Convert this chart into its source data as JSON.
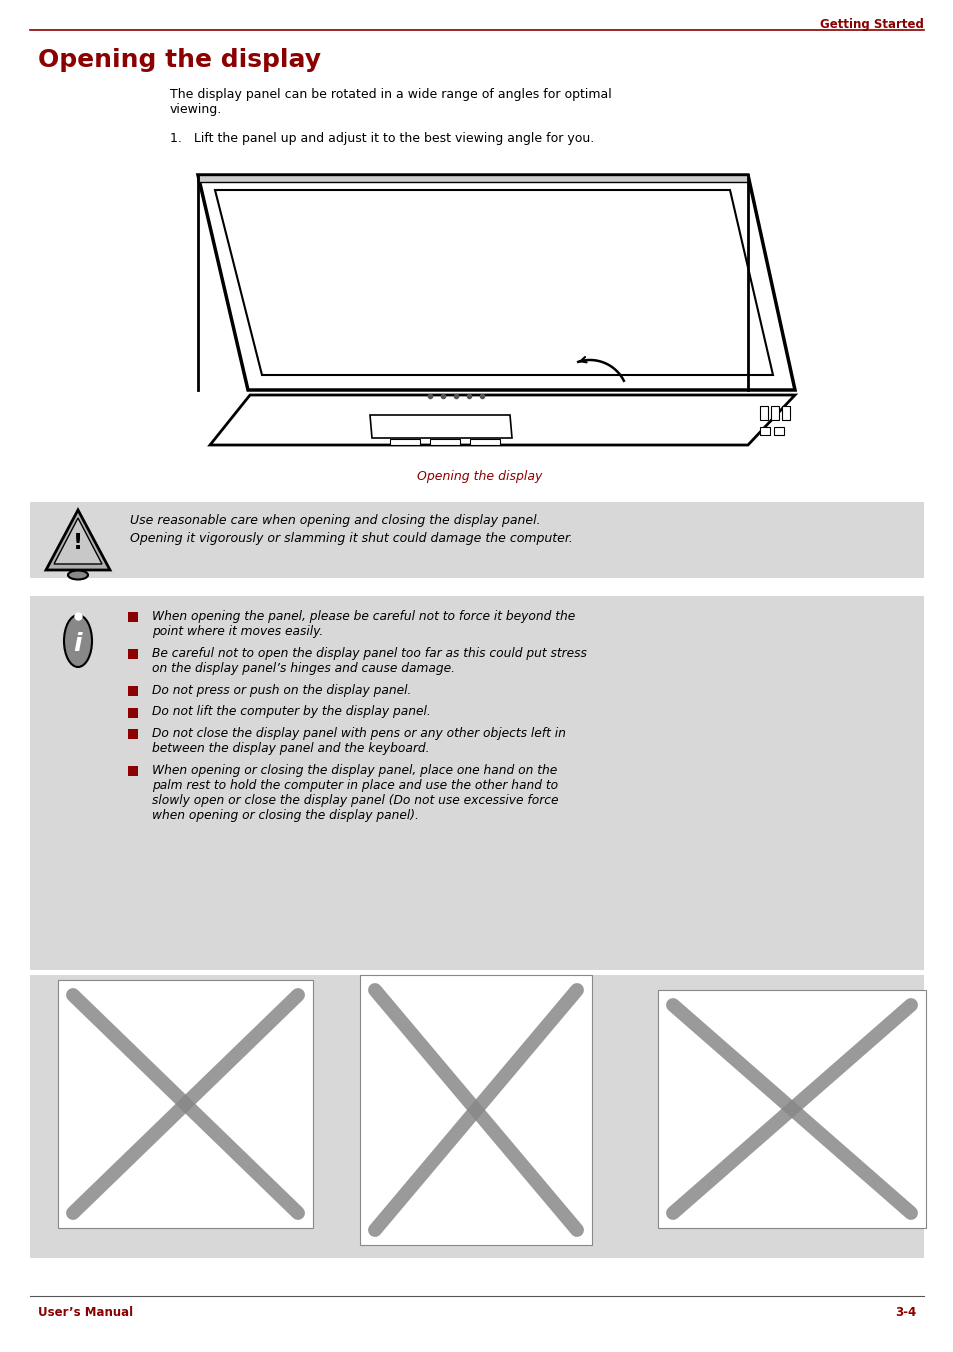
{
  "page_bg": "#ffffff",
  "header_text": "Getting Started",
  "header_color": "#8B0000",
  "header_line_color": "#8B0000",
  "title": "Opening the display",
  "title_color": "#8B0000",
  "title_fontsize": 18,
  "body_text_1": "The display panel can be rotated in a wide range of angles for optimal\nviewing.",
  "body_text_2": "1.   Lift the panel up and adjust it to the best viewing angle for you.",
  "caption_text": "Opening the display",
  "caption_color": "#8B0000",
  "warn_bg": "#d8d8d8",
  "warning_text_line1": "Use reasonable care when opening and closing the display panel.",
  "warning_text_line2": "Opening it vigorously or slamming it shut could damage the computer.",
  "info_bg": "#d8d8d8",
  "info_bullets": [
    "When opening the panel, please be careful not to force it beyond the\npoint where it moves easily.",
    "Be careful not to open the display panel too far as this could put stress\non the display panel’s hinges and cause damage.",
    "Do not press or push on the display panel.",
    "Do not lift the computer by the display panel.",
    "Do not close the display panel with pens or any other objects left in\nbetween the display panel and the keyboard.",
    "When opening or closing the display panel, place one hand on the\npalm rest to hold the computer in place and use the other hand to\nslowly open or close the display panel (Do not use excessive force\nwhen opening or closing the display panel)."
  ],
  "bullet_color": "#8B0000",
  "footer_left": "User’s Manual",
  "footer_right": "3-4",
  "footer_color": "#8B0000",
  "text_color": "#000000"
}
